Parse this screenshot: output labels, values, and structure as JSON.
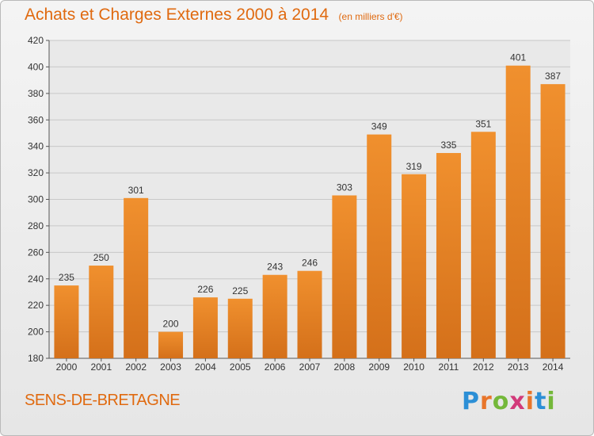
{
  "chart_data": {
    "type": "bar",
    "title": "Achats et Charges Externes 2000 à 2014",
    "unit_note": "(en milliers d'€)",
    "categories": [
      "2000",
      "2001",
      "2002",
      "2003",
      "2004",
      "2005",
      "2006",
      "2007",
      "2008",
      "2009",
      "2010",
      "2011",
      "2012",
      "2013",
      "2014"
    ],
    "values": [
      235,
      250,
      301,
      200,
      226,
      225,
      243,
      246,
      303,
      349,
      319,
      335,
      351,
      401,
      387
    ],
    "ylim": [
      180,
      420
    ],
    "yticks": [
      180,
      200,
      220,
      240,
      260,
      280,
      300,
      320,
      340,
      360,
      380,
      400,
      420
    ],
    "grid": true,
    "bar_color": "#f0902e",
    "bar_color_dark": "#d4701a"
  },
  "place_name": "SENS-DE-BRETAGNE",
  "brand": "Proxiti"
}
